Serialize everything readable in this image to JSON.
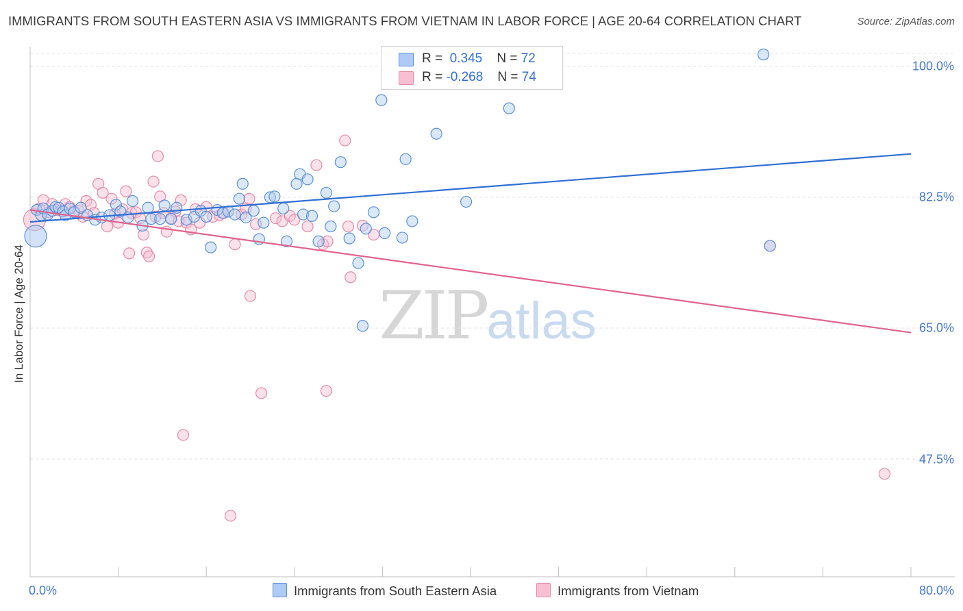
{
  "title": "IMMIGRANTS FROM SOUTH EASTERN ASIA VS IMMIGRANTS FROM VIETNAM IN LABOR FORCE | AGE 20-64 CORRELATION CHART",
  "source": "Source: ZipAtlas.com",
  "watermark": {
    "zip": "ZIP",
    "atlas": "atlas"
  },
  "legend": {
    "series": [
      {
        "r_label": "R =",
        "r_value": "0.345",
        "n_label": "N =",
        "n_value": "72",
        "color": "#aecbf5"
      },
      {
        "r_label": "R =",
        "r_value": "-0.268",
        "n_label": "N =",
        "n_value": "74",
        "color": "#f7bfd1"
      }
    ]
  },
  "bottom_legend": {
    "series_a": "Immigrants from South Eastern Asia",
    "series_b": "Immigrants from Vietnam"
  },
  "colors": {
    "blue_fill": "#aecbf5",
    "blue_stroke": "#5b8fd9",
    "blue_line": "#2f6fd6",
    "pink_fill": "#f7bfd1",
    "pink_stroke": "#e58aa8",
    "pink_line": "#e0638d",
    "tick_text": "#4477cc",
    "grid": "#e2e2e2"
  },
  "chart_data": {
    "type": "scatter",
    "title": "IMMIGRANTS FROM SOUTH EASTERN ASIA VS IMMIGRANTS FROM VIETNAM IN LABOR FORCE | AGE 20-64 CORRELATION CHART",
    "xlabel": "",
    "ylabel": "In Labor Force | Age 20-64",
    "xlim": [
      0,
      80
    ],
    "ylim": [
      32,
      102
    ],
    "x_tick_labels": [
      "0.0%",
      "80.0%"
    ],
    "y_ticks": [
      {
        "value": 100.0,
        "label": "100.0%"
      },
      {
        "value": 82.5,
        "label": "82.5%"
      },
      {
        "value": 65.0,
        "label": "65.0%"
      },
      {
        "value": 47.5,
        "label": "47.5%"
      }
    ],
    "grid": true,
    "legend_position": "top-center",
    "series": [
      {
        "name": "Immigrants from South Eastern Asia",
        "r": 0.345,
        "n": 72,
        "trend": {
          "x": [
            0,
            80
          ],
          "y": [
            79.2,
            88.3
          ]
        },
        "points": [
          [
            0.5,
            77.3
          ],
          [
            0.6,
            80.8
          ],
          [
            1.0,
            80.1
          ],
          [
            1.2,
            81.0
          ],
          [
            1.6,
            80.2
          ],
          [
            2.0,
            80.7
          ],
          [
            2.3,
            81.2
          ],
          [
            2.6,
            81.1
          ],
          [
            3.0,
            80.6
          ],
          [
            3.2,
            80.1
          ],
          [
            3.6,
            81.0
          ],
          [
            4.0,
            80.5
          ],
          [
            4.6,
            81.1
          ],
          [
            5.2,
            80.1
          ],
          [
            5.9,
            79.5
          ],
          [
            6.5,
            79.8
          ],
          [
            7.2,
            80.1
          ],
          [
            7.8,
            81.5
          ],
          [
            8.2,
            80.6
          ],
          [
            8.9,
            79.8
          ],
          [
            9.3,
            82.0
          ],
          [
            10.2,
            78.7
          ],
          [
            10.7,
            81.1
          ],
          [
            11.0,
            79.6
          ],
          [
            11.8,
            79.6
          ],
          [
            12.2,
            81.4
          ],
          [
            12.8,
            79.6
          ],
          [
            13.3,
            81.1
          ],
          [
            14.2,
            79.5
          ],
          [
            14.9,
            79.9
          ],
          [
            15.5,
            80.7
          ],
          [
            16.0,
            79.9
          ],
          [
            16.4,
            75.8
          ],
          [
            17.0,
            80.8
          ],
          [
            17.5,
            80.4
          ],
          [
            18.0,
            80.6
          ],
          [
            18.6,
            80.2
          ],
          [
            19.0,
            82.3
          ],
          [
            19.3,
            84.3
          ],
          [
            19.6,
            79.8
          ],
          [
            20.3,
            80.7
          ],
          [
            20.8,
            76.9
          ],
          [
            21.2,
            79.1
          ],
          [
            21.8,
            82.5
          ],
          [
            22.2,
            82.6
          ],
          [
            23.0,
            81.0
          ],
          [
            23.3,
            76.6
          ],
          [
            24.2,
            84.3
          ],
          [
            24.5,
            85.6
          ],
          [
            24.8,
            80.2
          ],
          [
            25.2,
            84.9
          ],
          [
            25.6,
            80.0
          ],
          [
            26.2,
            76.6
          ],
          [
            26.9,
            83.1
          ],
          [
            27.3,
            78.6
          ],
          [
            27.6,
            81.3
          ],
          [
            28.2,
            87.2
          ],
          [
            29.0,
            77.0
          ],
          [
            29.8,
            73.7
          ],
          [
            30.2,
            65.3
          ],
          [
            30.5,
            78.3
          ],
          [
            31.2,
            80.5
          ],
          [
            31.9,
            95.5
          ],
          [
            32.2,
            77.7
          ],
          [
            33.8,
            77.1
          ],
          [
            34.1,
            87.6
          ],
          [
            34.7,
            79.3
          ],
          [
            36.9,
            91.0
          ],
          [
            39.6,
            81.9
          ],
          [
            43.5,
            94.4
          ],
          [
            67.2,
            76.0
          ],
          [
            66.6,
            101.6
          ]
        ]
      },
      {
        "name": "Immigrants from Vietnam",
        "r": -0.268,
        "n": 74,
        "trend": {
          "x": [
            0,
            80
          ],
          "y": [
            80.8,
            64.4
          ]
        },
        "points": [
          [
            0.4,
            79.5
          ],
          [
            0.8,
            81.0
          ],
          [
            1.2,
            82.1
          ],
          [
            1.7,
            80.5
          ],
          [
            2.0,
            81.6
          ],
          [
            2.4,
            80.8
          ],
          [
            2.8,
            80.7
          ],
          [
            3.2,
            81.6
          ],
          [
            3.6,
            81.2
          ],
          [
            4.0,
            80.6
          ],
          [
            4.4,
            80.7
          ],
          [
            4.8,
            79.9
          ],
          [
            5.1,
            82.0
          ],
          [
            5.5,
            81.5
          ],
          [
            5.8,
            80.4
          ],
          [
            6.2,
            84.3
          ],
          [
            6.6,
            83.1
          ],
          [
            7.0,
            78.6
          ],
          [
            7.4,
            82.3
          ],
          [
            7.7,
            80.3
          ],
          [
            8.0,
            79.1
          ],
          [
            8.4,
            80.9
          ],
          [
            8.7,
            83.3
          ],
          [
            9.0,
            75.0
          ],
          [
            9.2,
            80.4
          ],
          [
            9.6,
            80.5
          ],
          [
            10.0,
            79.7
          ],
          [
            10.3,
            77.5
          ],
          [
            10.6,
            75.1
          ],
          [
            10.8,
            74.6
          ],
          [
            11.2,
            84.6
          ],
          [
            11.4,
            79.9
          ],
          [
            11.6,
            88.0
          ],
          [
            11.8,
            82.6
          ],
          [
            12.1,
            80.4
          ],
          [
            12.4,
            77.9
          ],
          [
            12.8,
            79.7
          ],
          [
            13.2,
            80.6
          ],
          [
            13.5,
            79.3
          ],
          [
            13.7,
            82.1
          ],
          [
            13.9,
            50.7
          ],
          [
            14.2,
            79.1
          ],
          [
            14.6,
            78.2
          ],
          [
            15.0,
            80.9
          ],
          [
            15.4,
            79.1
          ],
          [
            16.0,
            81.2
          ],
          [
            16.6,
            79.9
          ],
          [
            17.2,
            80.1
          ],
          [
            17.6,
            80.4
          ],
          [
            18.2,
            39.9
          ],
          [
            18.6,
            76.2
          ],
          [
            19.2,
            80.2
          ],
          [
            19.6,
            81.0
          ],
          [
            19.9,
            82.3
          ],
          [
            20.0,
            69.3
          ],
          [
            20.5,
            78.9
          ],
          [
            21.0,
            56.3
          ],
          [
            22.3,
            79.7
          ],
          [
            22.9,
            79.3
          ],
          [
            23.6,
            80.0
          ],
          [
            24.0,
            79.5
          ],
          [
            25.2,
            78.6
          ],
          [
            26.0,
            86.8
          ],
          [
            26.6,
            76.2
          ],
          [
            26.9,
            56.6
          ],
          [
            27.0,
            76.6
          ],
          [
            28.6,
            90.1
          ],
          [
            28.9,
            78.6
          ],
          [
            29.1,
            71.8
          ],
          [
            30.2,
            78.7
          ],
          [
            31.2,
            77.5
          ],
          [
            43.3,
            101.3
          ],
          [
            67.2,
            76.0
          ],
          [
            77.6,
            45.5
          ]
        ]
      }
    ]
  }
}
